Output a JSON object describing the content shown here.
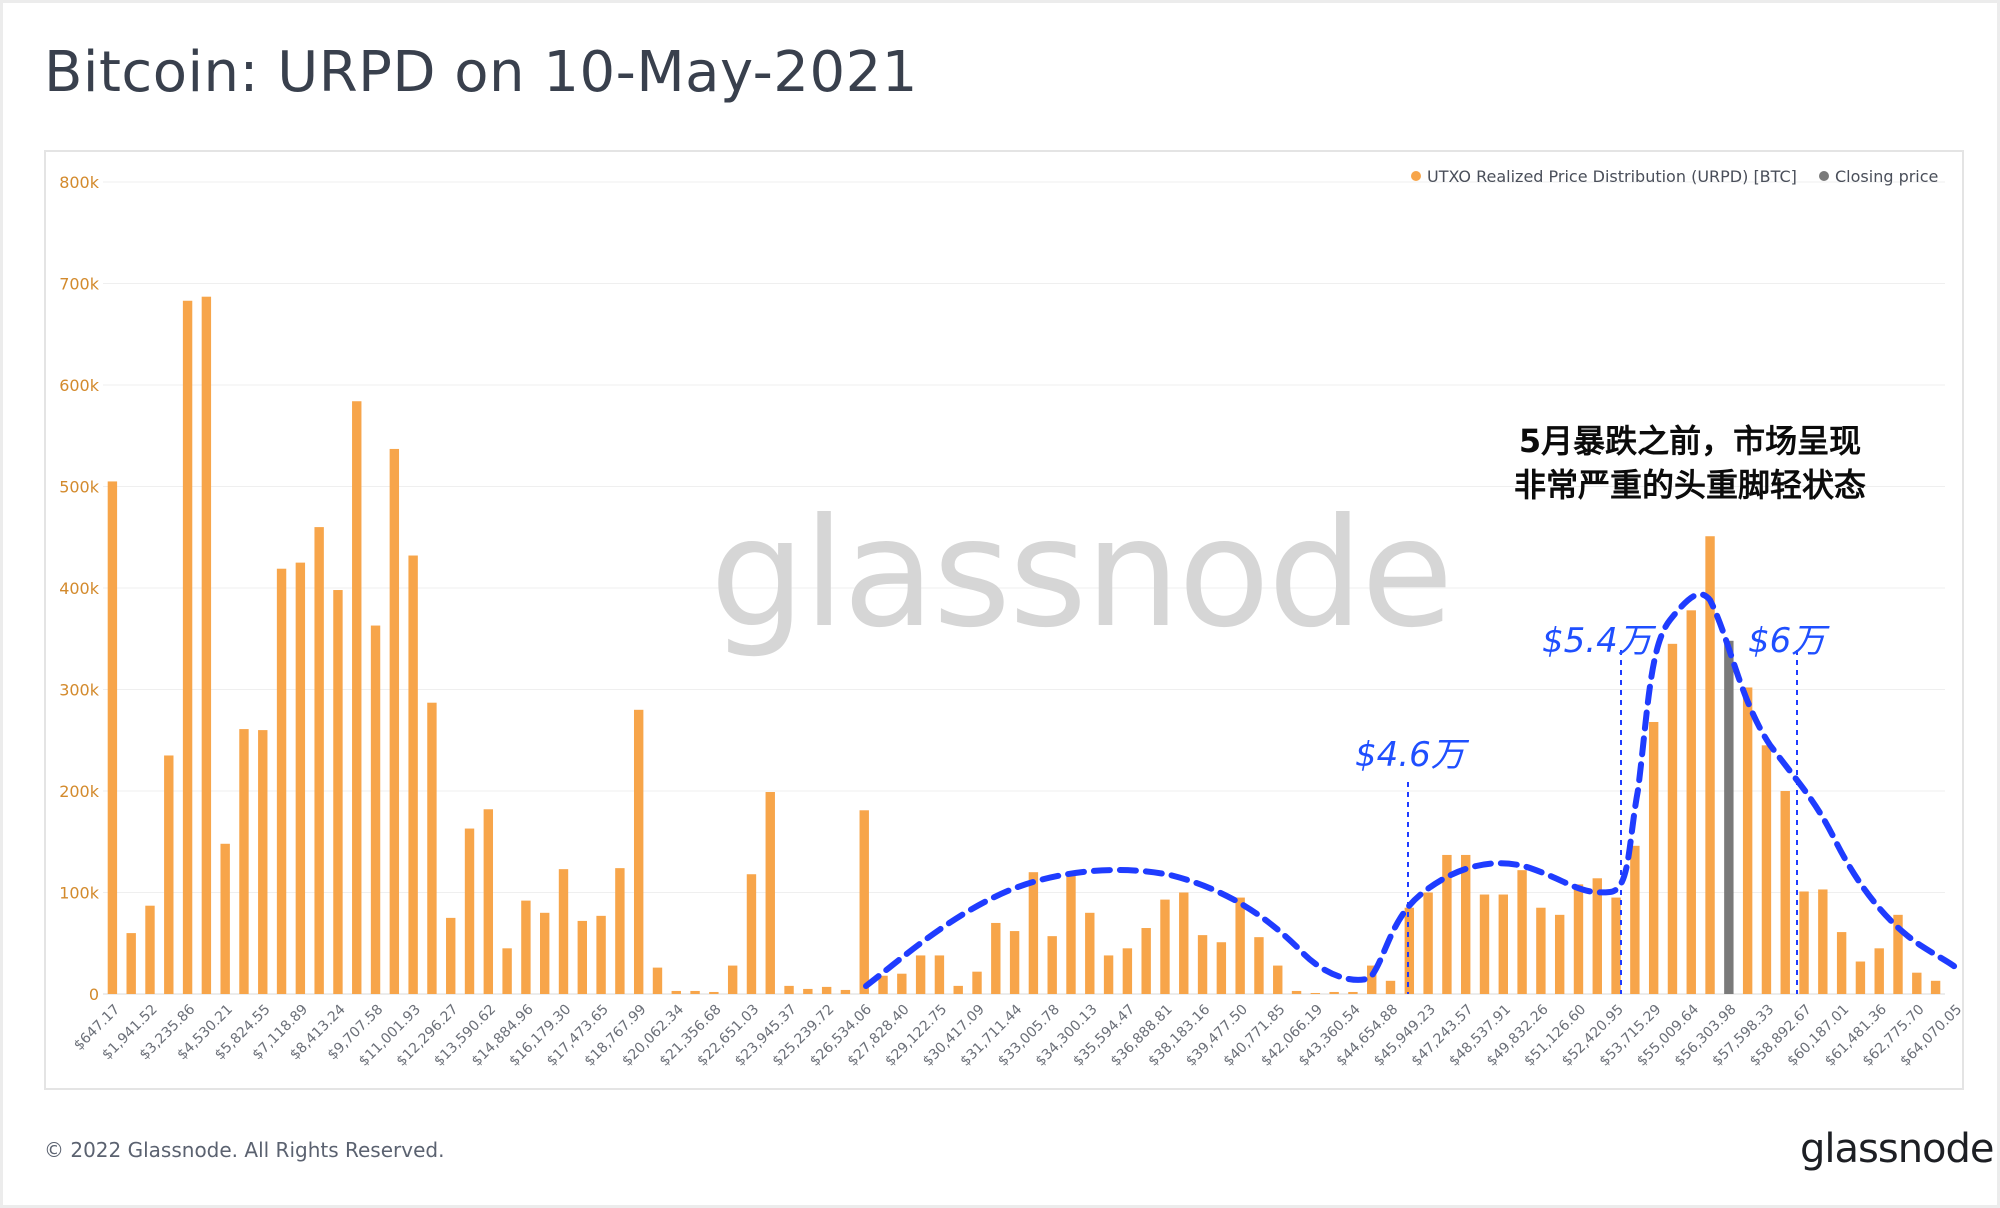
{
  "title": "Bitcoin: URPD on 10-May-2021",
  "footer": "© 2022 Glassnode. All Rights Reserved.",
  "brand": "glassnode",
  "watermark": "glassnode",
  "colors": {
    "bar": "#f7a54a",
    "closing": "#7a7a7a",
    "annotation_line": "#1f3cff",
    "y_axis_text": "#d38a2c"
  },
  "legend": [
    {
      "label": "UTXO Realized Price Distribution (URPD) [BTC]",
      "color": "#f7a54a"
    },
    {
      "label": "Closing price",
      "color": "#7a7a7a"
    }
  ],
  "annotations": {
    "note_line1": "5月暴跌之前，市场呈现",
    "note_line2": "非常严重的头重脚轻状态",
    "price_46": "$4.6万",
    "price_54": "$5.4万",
    "price_6": "$6万"
  },
  "chart_data": {
    "type": "bar",
    "title": "Bitcoin: URPD on 10-May-2021",
    "ylim": [
      0,
      800000
    ],
    "y_ticks": [
      "0",
      "100k",
      "200k",
      "300k",
      "400k",
      "500k",
      "600k",
      "700k",
      "800k"
    ],
    "x_tick_labels": [
      "$647.17",
      "$1,941.52",
      "$3,235.86",
      "$4,530.21",
      "$5,824.55",
      "$7,118.89",
      "$8,413.24",
      "$9,707.58",
      "$11,001.93",
      "$12,296.27",
      "$13,590.62",
      "$14,884.96",
      "$16,179.30",
      "$17,473.65",
      "$18,767.99",
      "$20,062.34",
      "$21,356.68",
      "$22,651.03",
      "$23,945.37",
      "$25,239.72",
      "$26,534.06",
      "$27,828.40",
      "$29,122.75",
      "$30,417.09",
      "$31,711.44",
      "$33,005.78",
      "$34,300.13",
      "$35,594.47",
      "$36,888.81",
      "$38,183.16",
      "$39,477.50",
      "$40,771.85",
      "$42,066.19",
      "$43,360.54",
      "$44,654.88",
      "$45,949.23",
      "$47,243.57",
      "$48,537.91",
      "$49,832.26",
      "$51,126.60",
      "$52,420.95",
      "$53,715.29",
      "$55,009.64",
      "$56,303.98",
      "$57,598.33",
      "$58,892.67",
      "$60,187.01",
      "$61,481.36",
      "$62,775.70",
      "$64,070.05"
    ],
    "values": [
      505000,
      60000,
      87000,
      235000,
      683000,
      687000,
      148000,
      261000,
      260000,
      419000,
      425000,
      460000,
      398000,
      584000,
      363000,
      537000,
      432000,
      287000,
      75000,
      163000,
      182000,
      45000,
      92000,
      80000,
      123000,
      72000,
      77000,
      124000,
      280000,
      26000,
      3000,
      3000,
      2000,
      28000,
      118000,
      199000,
      8000,
      5000,
      7000,
      4000,
      181000,
      18000,
      20000,
      38000,
      38000,
      8000,
      22000,
      70000,
      62000,
      120000,
      57000,
      118000,
      80000,
      38000,
      45000,
      65000,
      93000,
      100000,
      58000,
      51000,
      95000,
      56000,
      28000,
      3000,
      1000,
      2000,
      2000,
      28000,
      13000,
      85000,
      100000,
      137000,
      137000,
      98000,
      98000,
      122000,
      85000,
      78000,
      108000,
      114000,
      95000,
      146000,
      268000,
      345000,
      378000,
      451000,
      348000,
      302000,
      245000,
      200000,
      101000,
      103000,
      61000,
      32000,
      45000,
      78000,
      21000,
      13000
    ],
    "closing_index": 86,
    "legend_position": "top-right"
  }
}
